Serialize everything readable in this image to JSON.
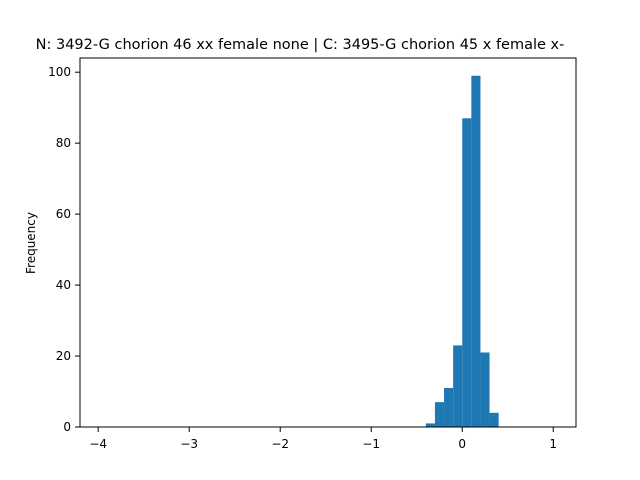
{
  "chart_data": {
    "type": "bar",
    "title": "N: 3492-G chorion 46 xx female none | C: 3495-G chorion 45 x female x-",
    "xlabel": "",
    "ylabel": "Frequency",
    "xlim": [
      -4.2,
      1.25
    ],
    "ylim": [
      0,
      104
    ],
    "xticks": [
      -4,
      -3,
      -2,
      -1,
      0,
      1
    ],
    "yticks": [
      0,
      20,
      40,
      60,
      80,
      100
    ],
    "bin_width": 0.1,
    "bins": [
      {
        "x0": -0.4,
        "x1": -0.3,
        "count": 1
      },
      {
        "x0": -0.3,
        "x1": -0.2,
        "count": 7
      },
      {
        "x0": -0.2,
        "x1": -0.1,
        "count": 11
      },
      {
        "x0": -0.1,
        "x1": 0.0,
        "count": 23
      },
      {
        "x0": 0.0,
        "x1": 0.1,
        "count": 87
      },
      {
        "x0": 0.1,
        "x1": 0.2,
        "count": 99
      },
      {
        "x0": 0.2,
        "x1": 0.3,
        "count": 21
      },
      {
        "x0": 0.3,
        "x1": 0.4,
        "count": 4
      }
    ],
    "bar_color": "#1f77b4",
    "grid": false
  }
}
